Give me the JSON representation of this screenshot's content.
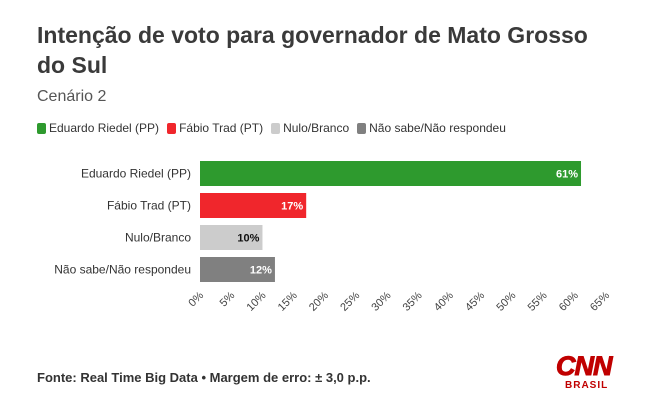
{
  "header": {
    "title": "Intenção de voto para governador de Mato Grosso do Sul",
    "subtitle": "Cenário 2"
  },
  "legend": [
    {
      "label": "Eduardo Riedel (PP)",
      "color": "#2e9a2e"
    },
    {
      "label": "Fábio Trad (PT)",
      "color": "#f0262c"
    },
    {
      "label": "Nulo/Branco",
      "color": "#cccccc"
    },
    {
      "label": "Não sabe/Não respondeu",
      "color": "#808080"
    }
  ],
  "chart_data": {
    "type": "bar",
    "orientation": "horizontal",
    "categories": [
      "Eduardo Riedel (PP)",
      "Fábio Trad (PT)",
      "Nulo/Branco",
      "Não sabe/Não respondeu"
    ],
    "values": [
      61,
      17,
      10,
      12
    ],
    "value_labels": [
      "61%",
      "17%",
      "10%",
      "12%"
    ],
    "colors": [
      "#2e9a2e",
      "#f0262c",
      "#cccccc",
      "#808080"
    ],
    "xlim": [
      0,
      65
    ],
    "ticks": [
      0,
      5,
      10,
      15,
      20,
      25,
      30,
      35,
      40,
      45,
      50,
      55,
      60,
      65
    ],
    "tick_labels": [
      "0%",
      "5%",
      "10%",
      "15%",
      "20%",
      "25%",
      "30%",
      "35%",
      "40%",
      "45%",
      "50%",
      "55%",
      "60%",
      "65%"
    ],
    "grid": false,
    "legend_position": "top-left"
  },
  "footer": {
    "source": "Fonte: Real Time Big Data • Margem de erro: ± 3,0 p.p."
  },
  "logo": {
    "main": "CNN",
    "sub": "BRASIL"
  }
}
